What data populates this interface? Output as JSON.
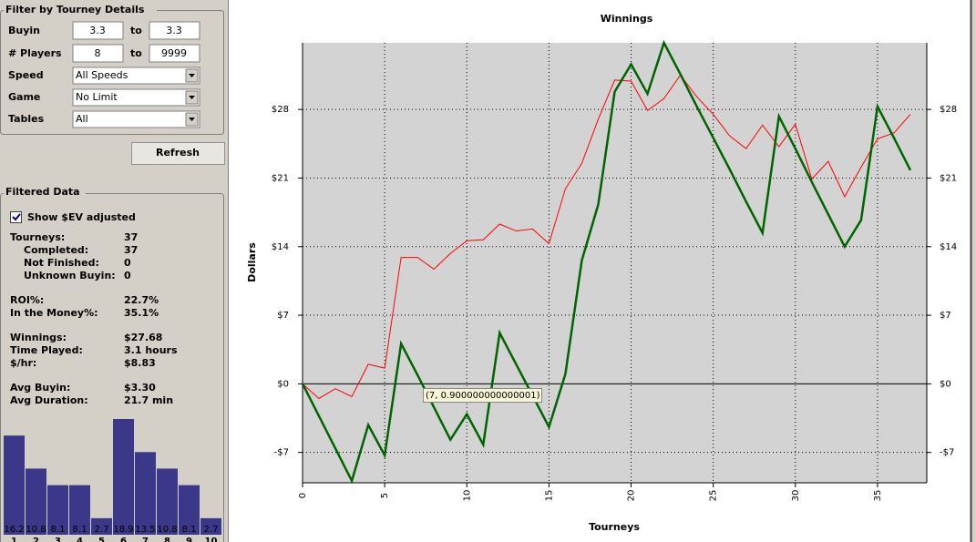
{
  "filter": {
    "title": "Filter by Tourney Details",
    "ranges": [
      {
        "label": "Buyin",
        "from": "3.3",
        "sep": "to",
        "to": "3.3"
      },
      {
        "label": "# Players",
        "from": "8",
        "sep": "to",
        "to": "9999"
      }
    ],
    "selects": [
      {
        "label": "Speed",
        "value": "All Speeds"
      },
      {
        "label": "Game",
        "value": "No Limit"
      },
      {
        "label": "Tables",
        "value": "All"
      }
    ],
    "refresh": "Refresh"
  },
  "filtered": {
    "title": "Filtered Data",
    "checkbox": "Show $EV adjusted",
    "checked": true,
    "stats": [
      [
        {
          "label": "Tourneys:",
          "value": "37",
          "color": "#000080"
        },
        {
          "label": "Completed:",
          "value": "37",
          "color": "#000080",
          "indent": true
        },
        {
          "label": "Not Finished:",
          "value": "0",
          "color": "#000080",
          "indent": true
        },
        {
          "label": "Unknown Buyin:",
          "value": "0",
          "color": "#000080",
          "indent": true
        }
      ],
      [
        {
          "label": "ROI%:",
          "value": "22.7%",
          "color": "#e00000"
        },
        {
          "label": "In the Money%:",
          "value": "35.1%",
          "color": "#000080"
        }
      ],
      [
        {
          "label": "Winnings:",
          "value": "$27.68",
          "color": "#e00000"
        },
        {
          "label": "Time Played:",
          "value": "3.1 hours",
          "color": "#000080"
        },
        {
          "label": "$/hr:",
          "value": "$8.83",
          "color": "#e00000"
        }
      ],
      [
        {
          "label": "Avg Buyin:",
          "value": "$3.30",
          "color": "#000080"
        },
        {
          "label": "Avg Duration:",
          "value": "21.7 min",
          "color": "#000080"
        }
      ]
    ]
  },
  "histogram": {
    "type": "bar",
    "color": "#3b3789",
    "categories": [
      "1",
      "2",
      "3",
      "4",
      "5",
      "6",
      "7",
      "8",
      "9",
      "10"
    ],
    "values": [
      16.2,
      10.8,
      8.1,
      8.1,
      2.7,
      18.9,
      13.5,
      10.8,
      8.1,
      2.7
    ]
  },
  "chart_data": {
    "type": "line",
    "title": "Winnings",
    "x_label": "Tourneys",
    "y_label": "Dollars",
    "x": [
      0,
      1,
      2,
      3,
      4,
      5,
      6,
      7,
      8,
      9,
      10,
      11,
      12,
      13,
      14,
      15,
      16,
      17,
      18,
      19,
      20,
      21,
      22,
      23,
      24,
      25,
      26,
      27,
      28,
      29,
      30,
      31,
      32,
      33,
      34,
      35,
      36,
      37
    ],
    "series": [
      {
        "color": "#ff0000",
        "width": 1,
        "values": [
          0,
          -1.5,
          -0.5,
          -1.3,
          2.0,
          1.6,
          12.9,
          12.9,
          11.7,
          13.3,
          14.6,
          14.7,
          16.3,
          15.6,
          15.8,
          14.3,
          19.9,
          22.5,
          27.0,
          31.0,
          30.9,
          27.9,
          29.1,
          31.5,
          29.3,
          27.5,
          25.3,
          24.0,
          26.4,
          24.2,
          26.5,
          20.9,
          22.7,
          19.1,
          22.1,
          25.0,
          25.6,
          27.5
        ]
      },
      {
        "color": "#006400",
        "width": 2.5,
        "values": [
          0,
          -3.3,
          -6.6,
          -9.9,
          -4.2,
          -7.3,
          4.1,
          0.9,
          -2.4,
          -5.7,
          -3.1,
          -6.2,
          5.2,
          2.0,
          -1.2,
          -4.4,
          1.0,
          12.6,
          18.3,
          29.8,
          32.6,
          29.6,
          34.8,
          31.6,
          28.3,
          25.1,
          21.9,
          18.6,
          15.4,
          27.3,
          24.0,
          20.6,
          17.3,
          14.0,
          16.7,
          28.3,
          25.1,
          21.8
        ]
      }
    ],
    "xlim": [
      0,
      38
    ],
    "ylim": [
      -10.1,
      34.8
    ],
    "xticks": [
      0,
      5,
      10,
      15,
      20,
      25,
      30,
      35
    ],
    "yticks": [
      {
        "value": -7,
        "label": "-$7"
      },
      {
        "value": 0,
        "label": "$0"
      },
      {
        "value": 7,
        "label": "$7"
      },
      {
        "value": 14,
        "label": "$14"
      },
      {
        "value": 21,
        "label": "$21"
      },
      {
        "value": 28,
        "label": "$28"
      }
    ],
    "grid": true,
    "annotation": "(7, 0.900000000000001)"
  }
}
